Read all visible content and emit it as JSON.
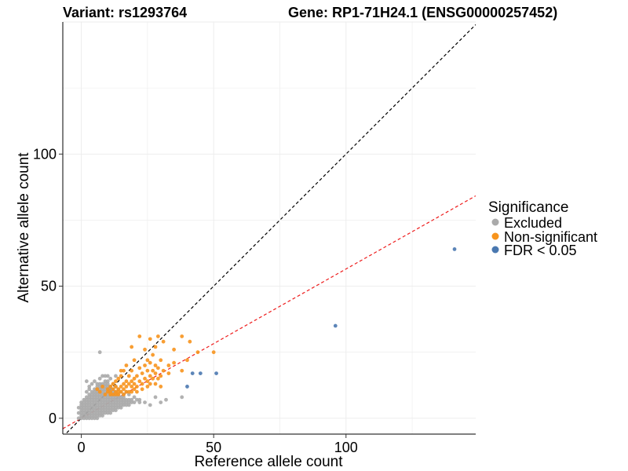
{
  "chart_data": {
    "type": "scatter",
    "title_left": "Variant: rs1293764",
    "title_right": "Gene: RP1-71H24.1 (ENSG00000257452)",
    "xlabel": "Reference allele count",
    "ylabel": "Alternative allele count",
    "xlim": [
      -7,
      149
    ],
    "ylim": [
      -6,
      150
    ],
    "x_ticks": [
      0,
      50,
      100
    ],
    "y_ticks": [
      0,
      50,
      100
    ],
    "grid": true,
    "reference_lines": [
      {
        "name": "identity",
        "slope": 1.0,
        "intercept": 0,
        "color": "#000000",
        "style": "dashed"
      },
      {
        "name": "fit",
        "slope": 0.565,
        "intercept": 0,
        "color": "#ee1c1c",
        "style": "dashed"
      }
    ],
    "legend": {
      "title": "Significance",
      "placement": "right",
      "entries": [
        {
          "label": "Excluded",
          "color": "#aaaaaa"
        },
        {
          "label": "Non-significant",
          "color": "#f7941d"
        },
        {
          "label": "FDR < 0.05",
          "color": "#4a78b0"
        }
      ]
    },
    "series": [
      {
        "name": "Excluded",
        "color": "#aaaaaa",
        "points": [
          [
            0,
            0
          ],
          [
            0,
            1
          ],
          [
            0,
            2
          ],
          [
            0,
            3
          ],
          [
            0,
            4
          ],
          [
            0,
            5
          ],
          [
            0,
            6
          ],
          [
            1,
            0
          ],
          [
            1,
            1
          ],
          [
            1,
            2
          ],
          [
            1,
            3
          ],
          [
            1,
            4
          ],
          [
            1,
            5
          ],
          [
            1,
            6
          ],
          [
            1,
            7
          ],
          [
            2,
            0
          ],
          [
            2,
            1
          ],
          [
            2,
            2
          ],
          [
            2,
            3
          ],
          [
            2,
            4
          ],
          [
            2,
            5
          ],
          [
            2,
            6
          ],
          [
            2,
            7
          ],
          [
            2,
            8
          ],
          [
            3,
            0
          ],
          [
            3,
            1
          ],
          [
            3,
            2
          ],
          [
            3,
            3
          ],
          [
            3,
            4
          ],
          [
            3,
            5
          ],
          [
            3,
            6
          ],
          [
            3,
            7
          ],
          [
            3,
            8
          ],
          [
            3,
            9
          ],
          [
            4,
            0
          ],
          [
            4,
            1
          ],
          [
            4,
            2
          ],
          [
            4,
            3
          ],
          [
            4,
            4
          ],
          [
            4,
            5
          ],
          [
            4,
            6
          ],
          [
            4,
            7
          ],
          [
            4,
            8
          ],
          [
            4,
            9
          ],
          [
            4,
            10
          ],
          [
            5,
            0
          ],
          [
            5,
            1
          ],
          [
            5,
            2
          ],
          [
            5,
            3
          ],
          [
            5,
            4
          ],
          [
            5,
            5
          ],
          [
            5,
            6
          ],
          [
            5,
            7
          ],
          [
            5,
            8
          ],
          [
            5,
            9
          ],
          [
            5,
            10
          ],
          [
            5,
            11
          ],
          [
            6,
            0
          ],
          [
            6,
            1
          ],
          [
            6,
            2
          ],
          [
            6,
            3
          ],
          [
            6,
            4
          ],
          [
            6,
            5
          ],
          [
            6,
            6
          ],
          [
            6,
            7
          ],
          [
            6,
            8
          ],
          [
            6,
            9
          ],
          [
            6,
            10
          ],
          [
            6,
            11
          ],
          [
            6,
            12
          ],
          [
            7,
            1
          ],
          [
            7,
            2
          ],
          [
            7,
            3
          ],
          [
            7,
            4
          ],
          [
            7,
            5
          ],
          [
            7,
            6
          ],
          [
            7,
            7
          ],
          [
            7,
            8
          ],
          [
            7,
            9
          ],
          [
            7,
            10
          ],
          [
            7,
            11
          ],
          [
            7,
            12
          ],
          [
            7,
            13
          ],
          [
            8,
            1
          ],
          [
            8,
            2
          ],
          [
            8,
            3
          ],
          [
            8,
            4
          ],
          [
            8,
            5
          ],
          [
            8,
            6
          ],
          [
            8,
            7
          ],
          [
            8,
            8
          ],
          [
            8,
            9
          ],
          [
            8,
            10
          ],
          [
            8,
            11
          ],
          [
            8,
            12
          ],
          [
            8,
            13
          ],
          [
            9,
            2
          ],
          [
            9,
            3
          ],
          [
            9,
            4
          ],
          [
            9,
            5
          ],
          [
            9,
            6
          ],
          [
            9,
            7
          ],
          [
            9,
            8
          ],
          [
            9,
            9
          ],
          [
            9,
            10
          ],
          [
            9,
            11
          ],
          [
            9,
            12
          ],
          [
            9,
            13
          ],
          [
            9,
            14
          ],
          [
            10,
            2
          ],
          [
            10,
            3
          ],
          [
            10,
            4
          ],
          [
            10,
            5
          ],
          [
            10,
            6
          ],
          [
            10,
            7
          ],
          [
            10,
            8
          ],
          [
            10,
            9
          ],
          [
            10,
            10
          ],
          [
            10,
            11
          ],
          [
            10,
            12
          ],
          [
            10,
            13
          ],
          [
            10,
            14
          ],
          [
            11,
            2
          ],
          [
            11,
            3
          ],
          [
            11,
            4
          ],
          [
            11,
            5
          ],
          [
            11,
            6
          ],
          [
            11,
            7
          ],
          [
            11,
            8
          ],
          [
            11,
            9
          ],
          [
            11,
            10
          ],
          [
            11,
            11
          ],
          [
            11,
            12
          ],
          [
            12,
            3
          ],
          [
            12,
            4
          ],
          [
            12,
            5
          ],
          [
            12,
            6
          ],
          [
            12,
            7
          ],
          [
            12,
            8
          ],
          [
            12,
            9
          ],
          [
            12,
            10
          ],
          [
            12,
            11
          ],
          [
            13,
            3
          ],
          [
            13,
            4
          ],
          [
            13,
            5
          ],
          [
            13,
            6
          ],
          [
            13,
            7
          ],
          [
            13,
            8
          ],
          [
            13,
            9
          ],
          [
            13,
            10
          ],
          [
            14,
            4
          ],
          [
            14,
            5
          ],
          [
            14,
            6
          ],
          [
            14,
            7
          ],
          [
            14,
            8
          ],
          [
            14,
            9
          ],
          [
            15,
            4
          ],
          [
            15,
            5
          ],
          [
            15,
            6
          ],
          [
            15,
            7
          ],
          [
            15,
            8
          ],
          [
            16,
            5
          ],
          [
            16,
            6
          ],
          [
            16,
            7
          ],
          [
            16,
            8
          ],
          [
            17,
            5
          ],
          [
            17,
            6
          ],
          [
            17,
            7
          ],
          [
            18,
            5
          ],
          [
            18,
            6
          ],
          [
            18,
            7
          ],
          [
            19,
            6
          ],
          [
            19,
            7
          ],
          [
            20,
            6
          ],
          [
            21,
            7
          ],
          [
            22,
            6
          ],
          [
            22,
            7
          ],
          [
            24,
            6
          ],
          [
            26,
            5
          ],
          [
            28,
            8
          ],
          [
            30,
            6
          ],
          [
            32,
            7
          ],
          [
            38,
            8
          ],
          [
            -1,
            0
          ],
          [
            -1,
            2
          ],
          [
            -1,
            4
          ],
          [
            7,
            15
          ],
          [
            8,
            16
          ],
          [
            5,
            14
          ],
          [
            6,
            13
          ],
          [
            4,
            13
          ],
          [
            3,
            12
          ],
          [
            9,
            16
          ],
          [
            13,
            16
          ],
          [
            10,
            16
          ],
          [
            7,
            25
          ],
          [
            2,
            14
          ],
          [
            11,
            15
          ],
          [
            3,
            11
          ],
          [
            2,
            10
          ],
          [
            16,
            9
          ],
          [
            18,
            9
          ],
          [
            20,
            8
          ],
          [
            15,
            10
          ],
          [
            14,
            11
          ],
          [
            12,
            13
          ],
          [
            13,
            12
          ],
          [
            17,
            10
          ]
        ]
      },
      {
        "name": "Non-significant",
        "color": "#f7941d",
        "points": [
          [
            9,
            9
          ],
          [
            10,
            10
          ],
          [
            10,
            11
          ],
          [
            11,
            9
          ],
          [
            11,
            10
          ],
          [
            11,
            12
          ],
          [
            12,
            9
          ],
          [
            12,
            11
          ],
          [
            12,
            13
          ],
          [
            13,
            9
          ],
          [
            13,
            10
          ],
          [
            13,
            12
          ],
          [
            13,
            14
          ],
          [
            14,
            9
          ],
          [
            14,
            10
          ],
          [
            14,
            11
          ],
          [
            14,
            15
          ],
          [
            15,
            10
          ],
          [
            15,
            12
          ],
          [
            15,
            16
          ],
          [
            15,
            18
          ],
          [
            16,
            9
          ],
          [
            16,
            11
          ],
          [
            16,
            13
          ],
          [
            16,
            18
          ],
          [
            17,
            10
          ],
          [
            17,
            12
          ],
          [
            17,
            14
          ],
          [
            17,
            20
          ],
          [
            18,
            10
          ],
          [
            18,
            13
          ],
          [
            18,
            16
          ],
          [
            19,
            10
          ],
          [
            19,
            12
          ],
          [
            19,
            14
          ],
          [
            19,
            18
          ],
          [
            19,
            27
          ],
          [
            20,
            11
          ],
          [
            20,
            13
          ],
          [
            20,
            15
          ],
          [
            20,
            22
          ],
          [
            21,
            10
          ],
          [
            21,
            12
          ],
          [
            21,
            16
          ],
          [
            22,
            14
          ],
          [
            22,
            19
          ],
          [
            22,
            31
          ],
          [
            23,
            11
          ],
          [
            23,
            13
          ],
          [
            23,
            17
          ],
          [
            24,
            15
          ],
          [
            24,
            20
          ],
          [
            24,
            26
          ],
          [
            25,
            12
          ],
          [
            25,
            14
          ],
          [
            25,
            18
          ],
          [
            25,
            22
          ],
          [
            26,
            13
          ],
          [
            26,
            16
          ],
          [
            26,
            21
          ],
          [
            26,
            30
          ],
          [
            27,
            15
          ],
          [
            27,
            18
          ],
          [
            27,
            24
          ],
          [
            28,
            13
          ],
          [
            28,
            17
          ],
          [
            28,
            20
          ],
          [
            28,
            27
          ],
          [
            29,
            15
          ],
          [
            29,
            19
          ],
          [
            29,
            31
          ],
          [
            30,
            12
          ],
          [
            30,
            16
          ],
          [
            30,
            22
          ],
          [
            31,
            18
          ],
          [
            31,
            29
          ],
          [
            33,
            17
          ],
          [
            33,
            20
          ],
          [
            35,
            21
          ],
          [
            35,
            26
          ],
          [
            38,
            31
          ],
          [
            38,
            18
          ],
          [
            40,
            22
          ],
          [
            41,
            29
          ],
          [
            44,
            25
          ],
          [
            50,
            25
          ],
          [
            7,
            10
          ],
          [
            8,
            12
          ],
          [
            6,
            11
          ]
        ]
      },
      {
        "name": "FDR < 0.05",
        "color": "#4a78b0",
        "points": [
          [
            40,
            12
          ],
          [
            42,
            17
          ],
          [
            45,
            17
          ],
          [
            51,
            17
          ],
          [
            96,
            35
          ],
          [
            141,
            64
          ]
        ]
      }
    ]
  }
}
